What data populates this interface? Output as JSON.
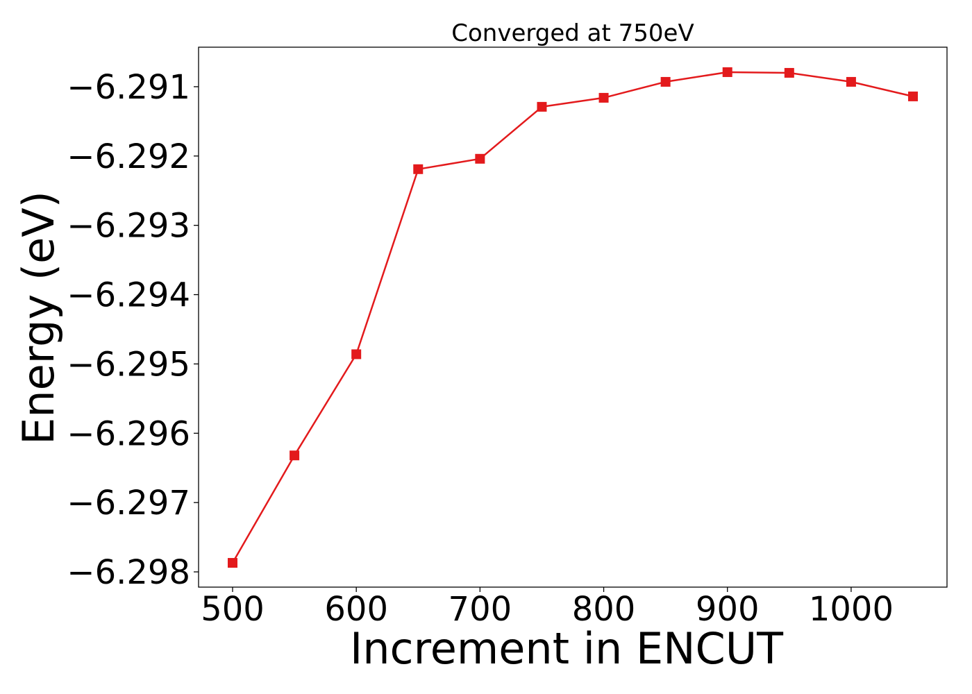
{
  "chart_data": {
    "type": "line",
    "title": "Converged at 750eV",
    "xlabel": "Increment in ENCUT",
    "ylabel": "Energy (eV)",
    "xlim": [
      472.5,
      1077.5
    ],
    "ylim": [
      -6.29822,
      -6.29043
    ],
    "x_ticks": [
      500,
      600,
      700,
      800,
      900,
      1000
    ],
    "x_tick_labels": [
      "500",
      "600",
      "700",
      "800",
      "900",
      "1000"
    ],
    "y_ticks": [
      -6.291,
      -6.292,
      -6.293,
      -6.294,
      -6.295,
      -6.296,
      -6.297,
      -6.298
    ],
    "y_tick_labels": [
      "−6.291",
      "−6.292",
      "−6.293",
      "−6.294",
      "−6.295",
      "−6.296",
      "−6.297",
      "−6.298"
    ],
    "grid": false,
    "legend": "none",
    "series": [
      {
        "color": "#e31a1c",
        "marker": "square",
        "x": [
          500,
          550,
          600,
          650,
          700,
          750,
          800,
          850,
          900,
          950,
          1000,
          1050
        ],
        "y": [
          -6.29787,
          -6.29632,
          -6.29486,
          -6.29219,
          -6.29204,
          -6.29129,
          -6.29116,
          -6.29093,
          -6.29079,
          -6.2908,
          -6.29093,
          -6.29114
        ]
      }
    ]
  }
}
